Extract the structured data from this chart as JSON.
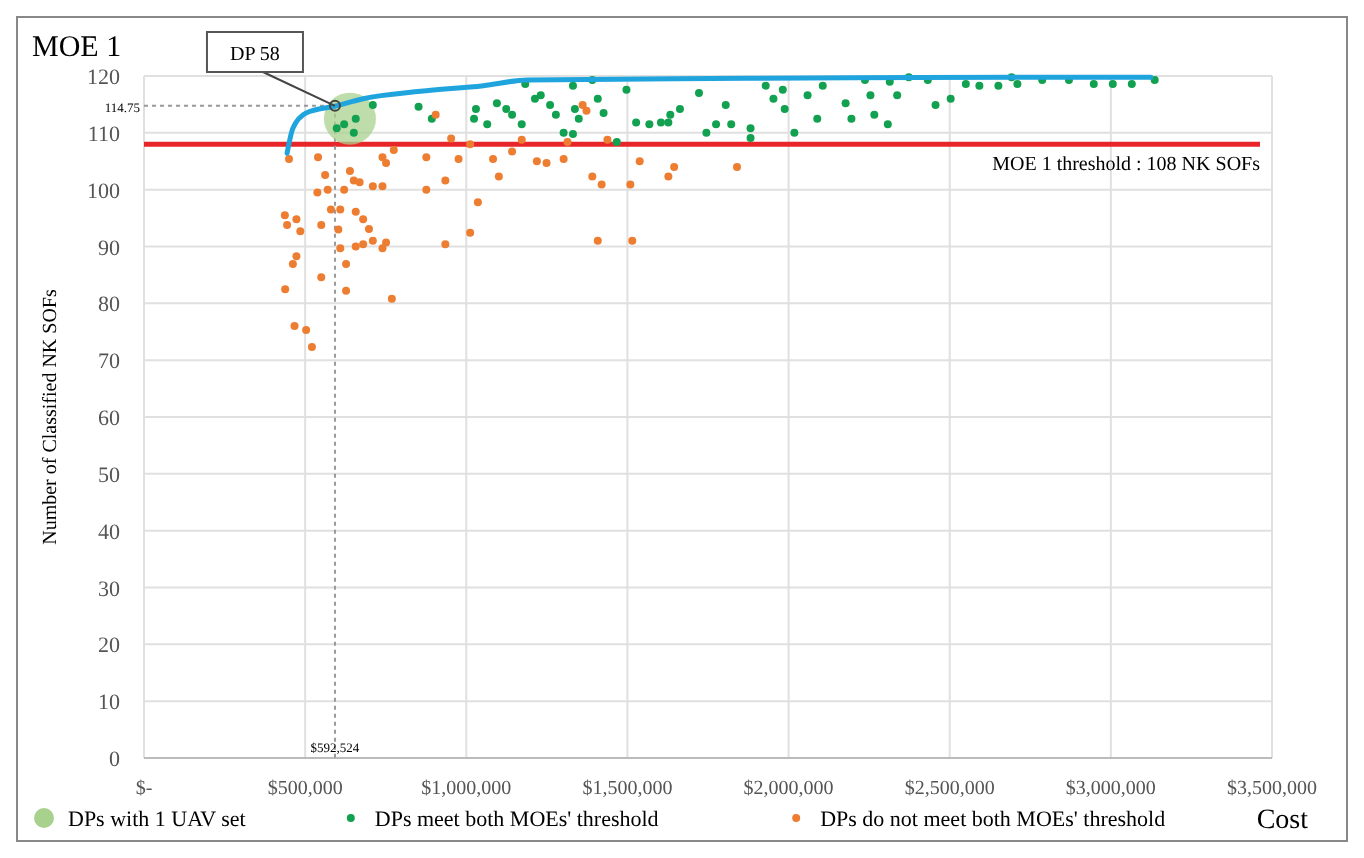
{
  "chart_data": {
    "type": "scatter",
    "title": "MOE 1",
    "ylabel": "Number of Classified NK SOFs",
    "xlabel": "Cost",
    "xlim": [
      0,
      3500000
    ],
    "ylim": [
      0,
      120
    ],
    "xticks": [
      {
        "value": 0,
        "label": "$-"
      },
      {
        "value": 500000,
        "label": "$500,000"
      },
      {
        "value": 1000000,
        "label": "$1,000,000"
      },
      {
        "value": 1500000,
        "label": "$1,500,000"
      },
      {
        "value": 2000000,
        "label": "$2,000,000"
      },
      {
        "value": 2500000,
        "label": "$2,500,000"
      },
      {
        "value": 3000000,
        "label": "$3,000,000"
      },
      {
        "value": 3500000,
        "label": "$3,500,000"
      }
    ],
    "yticks": [
      0,
      10,
      20,
      30,
      40,
      50,
      60,
      70,
      80,
      90,
      100,
      110,
      120
    ],
    "grid": true,
    "legend": "bottom",
    "marker": "circle",
    "ref_lines": [
      {
        "axis": "y",
        "value": 108,
        "label": "MOE 1 threshold : 108 NK SOFs",
        "color": "#e8262a",
        "line_style": "solid"
      },
      {
        "axis": "y",
        "value": 114.75,
        "label": "114.75",
        "color": "#999999",
        "line_style": "dotted"
      },
      {
        "axis": "x",
        "value": 592524,
        "label": "$592,524",
        "color": "#999999",
        "line_style": "dotted"
      }
    ],
    "annotations": [
      {
        "text": "DP 58",
        "x": 592524,
        "y": 114.75
      }
    ],
    "series": [
      {
        "name": "DPs with 1 UAV set",
        "type": "bubble",
        "color": "#a9d18e",
        "sizes": [
          1
        ],
        "x": [
          639000
        ],
        "values": [
          112.5
        ]
      },
      {
        "name": "DPs meet both MOEs' threshold",
        "color": "#12a150",
        "x": [
          598000,
          621000,
          657000,
          651000,
          710000,
          852000,
          893000,
          1024000,
          1030000,
          1065000,
          1095000,
          1124000,
          1142000,
          1172000,
          1213000,
          1231000,
          1260000,
          1278000,
          1302000,
          1331000,
          1337000,
          1349000,
          1331000,
          1408000,
          1426000,
          1467000,
          1497000,
          1527000,
          1568000,
          1604000,
          1633000,
          1391000,
          1183000,
          1627000,
          1663000,
          1722000,
          1745000,
          1805000,
          1775000,
          1822000,
          1882000,
          1882000,
          1929000,
          1953000,
          1982000,
          1988000,
          2018000,
          2059000,
          2089000,
          2106000,
          2177000,
          2195000,
          2237000,
          2254000,
          2266000,
          2308000,
          2337000,
          2373000,
          2432000,
          2456000,
          2503000,
          2550000,
          2592000,
          2651000,
          2710000,
          2787000,
          2870000,
          2947000,
          3006000,
          3065000,
          3136000,
          2314000,
          2692000
        ],
        "values": [
          110.8,
          111.5,
          112.5,
          110,
          114.9,
          114.6,
          112.5,
          112.5,
          114.2,
          111.5,
          115.2,
          114.2,
          113.2,
          111.5,
          116,
          116.6,
          114.9,
          113.2,
          110,
          118.3,
          114.2,
          112.5,
          109.8,
          116,
          113.5,
          108.4,
          117.6,
          111.8,
          111.5,
          111.8,
          113.2,
          119.3,
          118.6,
          111.8,
          114.2,
          117,
          110,
          114.9,
          111.5,
          111.5,
          110.8,
          109.1,
          118.3,
          116,
          117.6,
          114.2,
          110,
          116.6,
          112.5,
          118.3,
          115.2,
          112.5,
          119.3,
          116.6,
          113.2,
          111.5,
          116.6,
          119.8,
          119.3,
          114.9,
          116,
          118.6,
          118.3,
          118.3,
          118.6,
          119.3,
          119.3,
          118.6,
          118.6,
          118.6,
          119.3,
          119,
          119.8
        ]
      },
      {
        "name": "DPs do not meet both MOEs' threshold",
        "color": "#ed7d31",
        "x": [
          450000,
          437000,
          444000,
          473000,
          485000,
          473000,
          462000,
          438000,
          467000,
          503000,
          521000,
          550000,
          540000,
          562000,
          538000,
          570000,
          550000,
          580000,
          609000,
          621000,
          603000,
          609000,
          627000,
          627000,
          639000,
          651000,
          669000,
          657000,
          680000,
          698000,
          657000,
          680000,
          710000,
          740000,
          751000,
          769000,
          710000,
          740000,
          740000,
          775000,
          751000,
          876000,
          876000,
          905000,
          935000,
          935000,
          953000,
          976000,
          1012000,
          1036000,
          1012000,
          1083000,
          1101000,
          1142000,
          1172000,
          1219000,
          1249000,
          1302000,
          1314000,
          1361000,
          1373000,
          1391000,
          1420000,
          1408000,
          1438000,
          1515000,
          1509000,
          1538000,
          1627000,
          1645000,
          1840000
        ],
        "values": [
          105.4,
          95.5,
          93.8,
          94.8,
          92.7,
          88.3,
          86.9,
          82.5,
          76,
          75.3,
          72.3,
          84.6,
          105.7,
          102.6,
          99.5,
          100,
          93.8,
          96.5,
          96.5,
          100,
          93,
          89.7,
          86.9,
          82.2,
          103.3,
          101.6,
          101.3,
          96.1,
          94.8,
          93.1,
          90,
          90.4,
          91,
          89.7,
          90.7,
          80.8,
          100.6,
          100.6,
          105.7,
          107,
          104.7,
          105.7,
          100,
          113.2,
          101.6,
          90.4,
          109,
          105.4,
          92.4,
          97.8,
          108,
          105.4,
          102.3,
          106.7,
          108.8,
          105,
          104.7,
          105.4,
          108.4,
          114.9,
          113.9,
          102.3,
          100.9,
          91,
          108.8,
          91,
          100.9,
          105,
          102.3,
          104,
          104
        ]
      },
      {
        "type": "line",
        "marker": "none",
        "color": "#20a4de",
        "x": [
          444000,
          462000,
          503000,
          592524,
          680000,
          858000,
          1053000,
          1189000,
          1645000,
          2200000,
          2700000,
          3124000
        ],
        "values": [
          106.4,
          110.8,
          113.5,
          114.7,
          116,
          117.3,
          118.3,
          119.3,
          119.5,
          119.7,
          119.8,
          119.8
        ]
      }
    ]
  }
}
